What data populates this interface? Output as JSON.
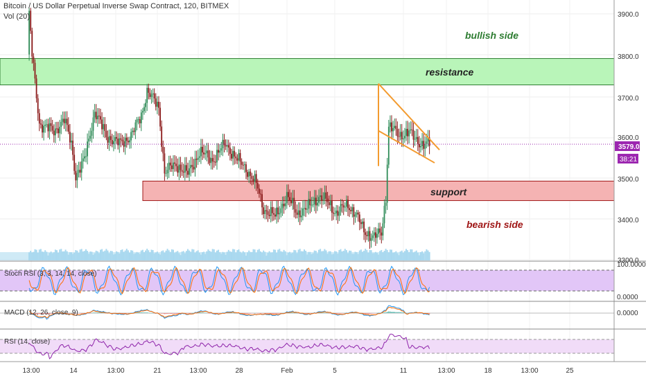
{
  "header": {
    "title": "Bitcoin / US Dollar Perpetual Inverse Swap Contract, 120, BITMEX",
    "volume_label": "Vol (20)"
  },
  "annotations": {
    "bullish": "bullish side",
    "resistance": "resistance",
    "support": "support",
    "bearish": "bearish side"
  },
  "colors": {
    "bull_candle": "#2e8b57",
    "bear_candle": "#8b1a1a",
    "volume": "#a8d8ef",
    "resistance_zone": "#b9f5b9",
    "support_zone": "#f5b3b3",
    "pattern_lines": "#f39b2f",
    "price_line": "#9c27b0",
    "stoch_band": "#e2c6f7",
    "rsi_band": "#f1dcf8"
  },
  "price_axis": {
    "ticks": [
      "3900.0",
      "3800.0",
      "3700.0",
      "3600.0",
      "3500.0",
      "3400.0",
      "3300.0"
    ],
    "current_price": "3579.0",
    "countdown": "38:21"
  },
  "panels": {
    "stoch": {
      "label": "Stoch RSI (3, 3, 14, 14, close)",
      "upper": "100.0000",
      "lower": "0.0000"
    },
    "macd": {
      "label": "MACD (12, 26, close, 9)",
      "zero": "0.0000"
    },
    "rsi": {
      "label": "RSI (14, close)"
    }
  },
  "time_axis": {
    "labels": [
      "13:00",
      "14",
      "13:00",
      "21",
      "13:00",
      "28",
      "Feb",
      "5",
      "11",
      "13:00",
      "18",
      "13:00",
      "25"
    ]
  },
  "chart_data": {
    "type": "candlestick",
    "ylim": [
      3280,
      3940
    ],
    "price_ticks": [
      3900,
      3800,
      3700,
      3600,
      3500,
      3400,
      3300
    ],
    "current_price": 3579,
    "zones": [
      {
        "name": "resistance",
        "low": 3725,
        "high": 3790
      },
      {
        "name": "support",
        "low": 3440,
        "high": 3488
      }
    ],
    "path": [
      [
        0,
        3950
      ],
      [
        3,
        3800
      ],
      [
        8,
        3630
      ],
      [
        18,
        3610
      ],
      [
        25,
        3640
      ],
      [
        30,
        3580
      ],
      [
        33,
        3500
      ],
      [
        39,
        3540
      ],
      [
        46,
        3660
      ],
      [
        54,
        3600
      ],
      [
        63,
        3580
      ],
      [
        71,
        3600
      ],
      [
        78,
        3650
      ],
      [
        82,
        3710
      ],
      [
        86,
        3690
      ],
      [
        90,
        3670
      ],
      [
        94,
        3510
      ],
      [
        102,
        3530
      ],
      [
        110,
        3505
      ],
      [
        118,
        3560
      ],
      [
        127,
        3540
      ],
      [
        136,
        3580
      ],
      [
        144,
        3540
      ],
      [
        150,
        3520
      ],
      [
        157,
        3480
      ],
      [
        162,
        3420
      ],
      [
        170,
        3400
      ],
      [
        178,
        3450
      ],
      [
        185,
        3410
      ],
      [
        192,
        3420
      ],
      [
        200,
        3450
      ],
      [
        205,
        3440
      ],
      [
        212,
        3410
      ],
      [
        220,
        3430
      ],
      [
        225,
        3410
      ],
      [
        231,
        3365
      ],
      [
        238,
        3350
      ],
      [
        243,
        3360
      ],
      [
        246,
        3450
      ],
      [
        248,
        3625
      ],
      [
        255,
        3600
      ],
      [
        262,
        3610
      ],
      [
        266,
        3590
      ],
      [
        271,
        3580
      ],
      [
        276,
        3579
      ]
    ],
    "pattern_lines": [
      {
        "from": [
          546,
          3525
        ],
        "to": [
          546,
          3728
        ]
      },
      {
        "from": [
          546,
          3728
        ],
        "to": [
          634,
          3565
        ]
      },
      {
        "from": [
          546,
          3612
        ],
        "to": [
          627,
          3533
        ]
      },
      {
        "from": [
          546,
          3612
        ],
        "to": [
          546,
          3528
        ]
      }
    ]
  }
}
